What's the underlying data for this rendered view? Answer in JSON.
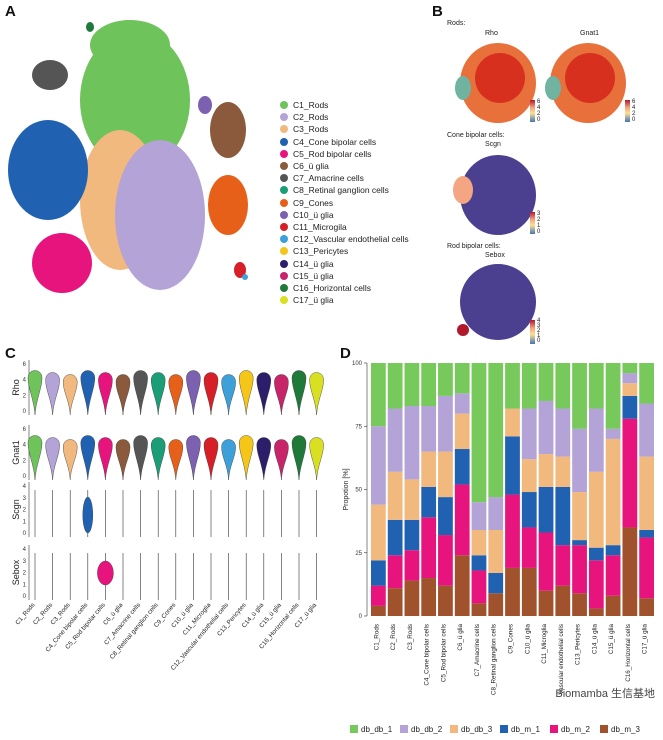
{
  "panels": {
    "a": "A",
    "b": "B",
    "c": "C",
    "d": "D"
  },
  "legend_a": [
    {
      "label": "C1_Rods",
      "color": "#6ec35a"
    },
    {
      "label": "C2_Rods",
      "color": "#b3a3d6"
    },
    {
      "label": "C3_Rods",
      "color": "#f2b97e"
    },
    {
      "label": "C4_Cone bipolar cells",
      "color": "#2161b2"
    },
    {
      "label": "C5_Rod bipolar cells",
      "color": "#e8147d"
    },
    {
      "label": "C6_ü glia",
      "color": "#8b5a3c"
    },
    {
      "label": "C7_Amacrine cells",
      "color": "#555555"
    },
    {
      "label": "C8_Retinal ganglion cells",
      "color": "#1b9e77"
    },
    {
      "label": "C9_Cones",
      "color": "#e6601a"
    },
    {
      "label": "C10_ü glia",
      "color": "#7b61b0"
    },
    {
      "label": "C11_Microgila",
      "color": "#d61f26"
    },
    {
      "label": "C12_Vascular endothelial cells",
      "color": "#3ea0d8"
    },
    {
      "label": "C13_Pericytes",
      "color": "#f5c518"
    },
    {
      "label": "C14_ü glia",
      "color": "#2d1e6b"
    },
    {
      "label": "C15_ü glia",
      "color": "#c7246a"
    },
    {
      "label": "C16_Horizontal cells",
      "color": "#1f7a3a"
    },
    {
      "label": "C17_ü glia",
      "color": "#d9e021"
    }
  ],
  "panel_b": {
    "group_rods": "Rods:",
    "gene_rho": "Rho",
    "gene_gnat1": "Gnat1",
    "group_cone": "Cone bipolar cells:",
    "gene_scgn": "Scgn",
    "group_rod_bipolar": "Rod bipolar cells:",
    "gene_sebox": "Sebox",
    "scale_ticks_a": [
      "6",
      "4",
      "2",
      "0"
    ],
    "scale_ticks_b": [
      "3",
      "2",
      "1",
      "0"
    ],
    "scale_ticks_c": [
      "4",
      "3",
      "2",
      "1",
      "0"
    ]
  },
  "panel_c": {
    "genes": [
      "Rho",
      "Gnat1",
      "Scgn",
      "Sebox"
    ],
    "yticks": [
      "6",
      "4",
      "2",
      "0"
    ],
    "yticks_sparse": [
      "4",
      "3",
      "2",
      "1",
      "0"
    ],
    "categories": [
      "C1_Rods",
      "C2_Rods",
      "C3_Rods",
      "C4_Cone bipolar cells",
      "C5_Rod bipolar cells",
      "C6_ü glia",
      "C7_Amacrine cells",
      "C8_Retinal ganglion cells",
      "C9_Cones",
      "C10_ü glia",
      "C11_Microglia",
      "C12_Vascular endothelial cells",
      "C13_Pericytes",
      "C14_ü glia",
      "C15_ü glia",
      "C16_Horizontal cells",
      "C17_ü glia"
    ]
  },
  "chart_data": {
    "type": "bar",
    "stacked": true,
    "ylabel": "Propotion [%]",
    "ylim": [
      0,
      100
    ],
    "yticks": [
      "100",
      "75",
      "50",
      "25",
      "0"
    ],
    "categories": [
      "C1_Rods",
      "C2_Rods",
      "C3_Rods",
      "C4_Cone bipolar cells",
      "C5_Rod bipolar cells",
      "C6_ü glia",
      "C7_Amacrine cells",
      "C8_Retinal ganglion cells",
      "C9_Cones",
      "C10_ü glia",
      "C11_Microglia",
      "C12_Vascular endothelial cells",
      "C13_Pericytes",
      "C14_ü glia",
      "C15_ü glia",
      "C16_Horizontal cells",
      "C17_ü glia"
    ],
    "series": [
      {
        "name": "db_m_3",
        "color": "#a0522d",
        "values": [
          4,
          11,
          14,
          15,
          12,
          24,
          5,
          9,
          19,
          19,
          10,
          12,
          9,
          3,
          8,
          35,
          7
        ]
      },
      {
        "name": "db_m_2",
        "color": "#e8147d",
        "values": [
          8,
          13,
          12,
          24,
          20,
          28,
          13,
          0,
          29,
          16,
          23,
          16,
          19,
          19,
          16,
          43,
          24
        ]
      },
      {
        "name": "db_m_1",
        "color": "#2161b2",
        "values": [
          10,
          14,
          12,
          12,
          15,
          14,
          6,
          8,
          23,
          14,
          18,
          23,
          2,
          5,
          4,
          9,
          3
        ]
      },
      {
        "name": "db_db_3",
        "color": "#f2b97e",
        "values": [
          22,
          19,
          16,
          14,
          18,
          14,
          10,
          17,
          11,
          13,
          13,
          12,
          19,
          30,
          42,
          5,
          29
        ]
      },
      {
        "name": "db_db_2",
        "color": "#b3a3d6",
        "values": [
          31,
          25,
          29,
          18,
          22,
          8,
          11,
          13,
          0,
          20,
          21,
          19,
          25,
          25,
          4,
          4,
          21
        ]
      },
      {
        "name": "db_db_1",
        "color": "#76c95a",
        "values": [
          25,
          18,
          17,
          17,
          13,
          12,
          55,
          53,
          18,
          18,
          15,
          18,
          26,
          18,
          26,
          4,
          16
        ]
      }
    ]
  },
  "watermark": "Biomamba 生信基地"
}
